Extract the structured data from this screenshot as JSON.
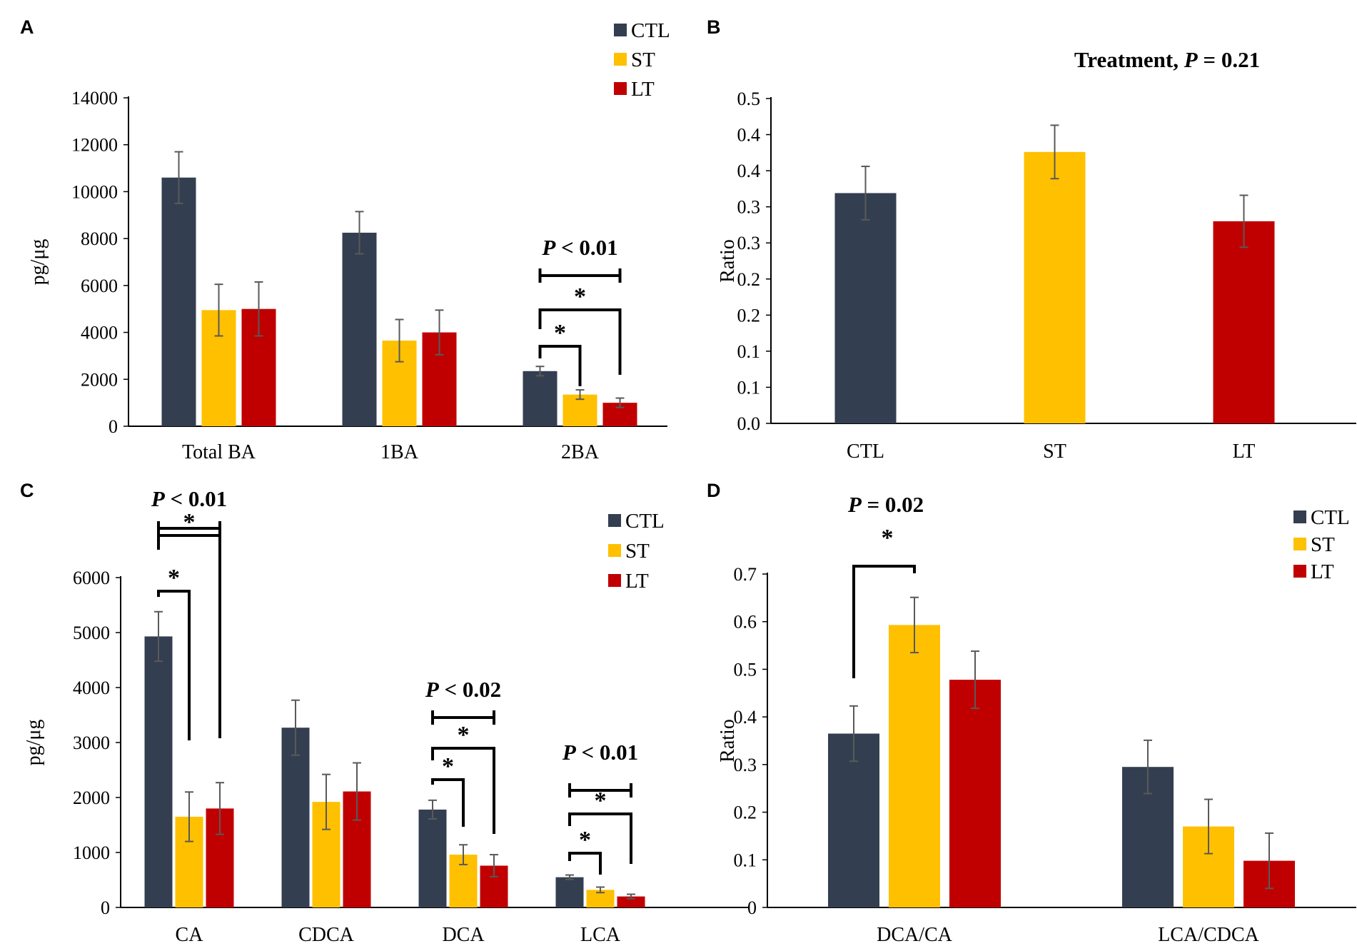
{
  "colors": {
    "CTL": "#333f50",
    "ST": "#ffc000",
    "LT": "#c00000",
    "error": "#595959",
    "axis": "#000000"
  },
  "chart_data": [
    {
      "panel": "A",
      "type": "bar",
      "title": "",
      "xlabel": "",
      "ylabel": "pg/μg",
      "ylim": [
        0,
        14000
      ],
      "yticks": [
        0,
        2000,
        4000,
        6000,
        8000,
        10000,
        12000,
        14000
      ],
      "ytick_labels": [
        "0",
        "2000",
        "4000",
        "6000",
        "8000",
        "10000",
        "12000",
        "14000"
      ],
      "categories": [
        "Total BA",
        "1BA",
        "2BA"
      ],
      "legend": [
        "CTL",
        "ST",
        "LT"
      ],
      "legend_position": "top-right",
      "series": [
        {
          "name": "CTL",
          "values": [
            10600,
            8250,
            2350
          ],
          "errors": [
            1100,
            900,
            200
          ]
        },
        {
          "name": "ST",
          "values": [
            4950,
            3650,
            1350
          ],
          "errors": [
            1100,
            900,
            200
          ]
        },
        {
          "name": "LT",
          "values": [
            5000,
            4000,
            1000
          ],
          "errors": [
            1150,
            950,
            200
          ]
        }
      ],
      "annotations": [
        {
          "text": "P < 0.01",
          "italic": "P",
          "rest": " < 0.01",
          "category": "2BA"
        }
      ],
      "significance": [
        {
          "category": "2BA",
          "from": "CTL",
          "to": "ST",
          "star": "*"
        },
        {
          "category": "2BA",
          "from": "CTL",
          "to": "LT",
          "star": "*"
        },
        {
          "category": "2BA",
          "from": "CTL",
          "to": "LT",
          "star": "",
          "overall": true
        }
      ]
    },
    {
      "panel": "B",
      "type": "bar",
      "title": "Treatment, P = 0.21",
      "title_parts": {
        "prefix": "Treatment, ",
        "italic": "P",
        "suffix": " = 0.21"
      },
      "xlabel": "",
      "ylabel": "Ratio",
      "ylim": [
        0,
        0.45
      ],
      "yticks": [
        0,
        0.05,
        0.1,
        0.15,
        0.2,
        0.25,
        0.3,
        0.35,
        0.4,
        0.45
      ],
      "ytick_labels": [
        "0.0",
        "0.1",
        "0.1",
        "0.2",
        "0.2",
        "0.3",
        "0.3",
        "0.4",
        "0.4",
        "0.5"
      ],
      "categories": [
        "CTL",
        "ST",
        "LT"
      ],
      "series": [
        {
          "name": "Ratio",
          "values": [
            0.319,
            0.376,
            0.28
          ],
          "errors": [
            0.037,
            0.037,
            0.036
          ],
          "colors": [
            "CTL",
            "ST",
            "LT"
          ]
        }
      ]
    },
    {
      "panel": "C",
      "type": "bar",
      "title": "",
      "xlabel": "",
      "ylabel": "pg/μg",
      "ylim": [
        0,
        6000
      ],
      "yticks": [
        0,
        1000,
        2000,
        3000,
        4000,
        5000,
        6000
      ],
      "ytick_labels": [
        "0",
        "1000",
        "2000",
        "3000",
        "4000",
        "5000",
        "6000"
      ],
      "categories": [
        "CA",
        "CDCA",
        "DCA",
        "LCA"
      ],
      "legend": [
        "CTL",
        "ST",
        "LT"
      ],
      "legend_position": "top-right",
      "series": [
        {
          "name": "CTL",
          "values": [
            4930,
            3270,
            1780,
            550
          ],
          "errors": [
            450,
            500,
            170,
            40
          ]
        },
        {
          "name": "ST",
          "values": [
            1650,
            1920,
            960,
            320
          ],
          "errors": [
            450,
            500,
            180,
            50
          ]
        },
        {
          "name": "LT",
          "values": [
            1800,
            2110,
            760,
            200
          ],
          "errors": [
            470,
            520,
            200,
            40
          ]
        }
      ],
      "annotations": [
        {
          "text": "P < 0.01",
          "italic": "P",
          "rest": " < 0.01",
          "category": "CA"
        },
        {
          "text": "P < 0.02",
          "italic": "P",
          "rest": " < 0.02",
          "category": "DCA"
        },
        {
          "text": "P < 0.01",
          "italic": "P",
          "rest": " < 0.01",
          "category": "LCA"
        }
      ],
      "significance": [
        {
          "category": "CA",
          "from": "CTL",
          "to": "ST",
          "star": "*"
        },
        {
          "category": "CA",
          "from": "CTL",
          "to": "LT",
          "star": "*"
        },
        {
          "category": "DCA",
          "from": "CTL",
          "to": "ST",
          "star": "*"
        },
        {
          "category": "DCA",
          "from": "CTL",
          "to": "LT",
          "star": "*"
        },
        {
          "category": "LCA",
          "from": "CTL",
          "to": "ST",
          "star": "*"
        },
        {
          "category": "LCA",
          "from": "CTL",
          "to": "LT",
          "star": "*"
        }
      ]
    },
    {
      "panel": "D",
      "type": "bar",
      "title": "",
      "xlabel": "",
      "ylabel": "Ratio",
      "ylim": [
        0,
        0.7
      ],
      "yticks": [
        0,
        0.1,
        0.2,
        0.3,
        0.4,
        0.5,
        0.6,
        0.7
      ],
      "ytick_labels": [
        "0",
        "0.1",
        "0.2",
        "0.3",
        "0.4",
        "0.5",
        "0.6",
        "0.7"
      ],
      "categories": [
        "DCA/CA",
        "LCA/CDCA"
      ],
      "legend": [
        "CTL",
        "ST",
        "LT"
      ],
      "legend_position": "top-right",
      "series": [
        {
          "name": "CTL",
          "values": [
            0.365,
            0.295
          ],
          "errors": [
            0.058,
            0.056
          ]
        },
        {
          "name": "ST",
          "values": [
            0.593,
            0.17
          ],
          "errors": [
            0.058,
            0.057
          ]
        },
        {
          "name": "LT",
          "values": [
            0.478,
            0.098
          ],
          "errors": [
            0.06,
            0.058
          ]
        }
      ],
      "annotations": [
        {
          "text": "P = 0.02",
          "italic": "P",
          "rest": " = 0.02",
          "category": "DCA/CA"
        }
      ],
      "significance": [
        {
          "category": "DCA/CA",
          "from": "CTL",
          "to": "ST",
          "star": "*"
        }
      ]
    }
  ]
}
